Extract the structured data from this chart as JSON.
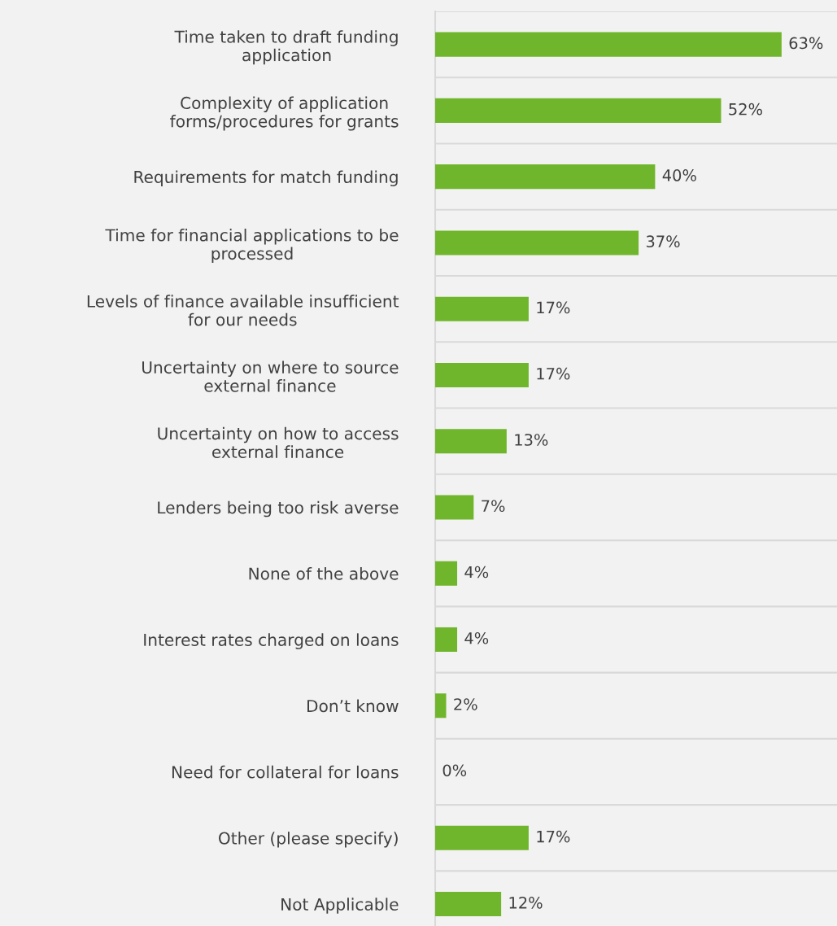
{
  "chart_data": {
    "type": "bar",
    "orientation": "horizontal",
    "categories": [
      "Time taken to draft funding\napplication",
      "Complexity of application\nforms/procedures for grants",
      "Requirements for match funding",
      "Time for financial applications to be\nprocessed",
      "Levels of finance available insufficient\nfor our needs",
      "Uncertainty on where to source\nexternal finance",
      "Uncertainty on how to access\nexternal finance",
      "Lenders being too risk averse",
      "None of the above",
      "Interest rates charged on loans",
      "Don’t know",
      "Need for collateral for loans",
      "Other (please specify)",
      "Not Applicable"
    ],
    "values": [
      63,
      52,
      40,
      37,
      17,
      17,
      13,
      7,
      4,
      4,
      2,
      0,
      17,
      12
    ],
    "value_labels": [
      "63%",
      "52%",
      "40%",
      "37%",
      "17%",
      "17%",
      "13%",
      "7%",
      "4%",
      "4%",
      "2%",
      "0%",
      "17%",
      "12%"
    ],
    "color": "#70b62c",
    "grid": "y",
    "tick_labels": "y",
    "legend": false
  }
}
